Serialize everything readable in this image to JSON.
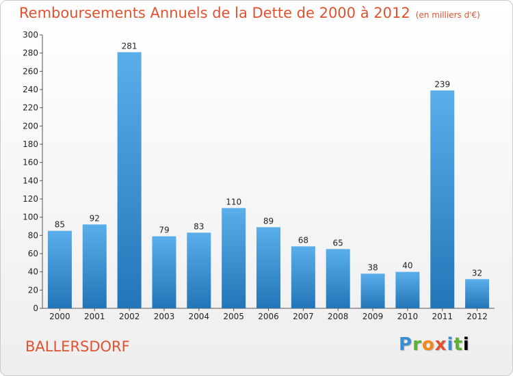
{
  "header": {
    "title": "Remboursements Annuels de la Dette de 2000 à 2012",
    "subtitle": "(en milliers d'€)"
  },
  "footer": {
    "commune": "BALLERSDORF",
    "logo_letters": [
      "P",
      "r",
      "o",
      "x",
      "i",
      "t",
      "i"
    ]
  },
  "colors": {
    "title": "#e0522e",
    "bar_light": "#5aaeea",
    "bar_dark": "#2276b8"
  },
  "chart_data": {
    "type": "bar",
    "title": "Remboursements Annuels de la Dette de 2000 à 2012",
    "subtitle": "(en milliers d'€)",
    "xlabel": "",
    "ylabel": "",
    "categories": [
      "2000",
      "2001",
      "2002",
      "2003",
      "2004",
      "2005",
      "2006",
      "2007",
      "2008",
      "2009",
      "2010",
      "2011",
      "2012"
    ],
    "values": [
      85,
      92,
      281,
      79,
      83,
      110,
      89,
      68,
      65,
      38,
      40,
      239,
      32
    ],
    "ylim": [
      0,
      300
    ],
    "yticks": [
      0,
      20,
      40,
      60,
      80,
      100,
      120,
      140,
      160,
      180,
      200,
      220,
      240,
      260,
      280,
      300
    ],
    "grid": false,
    "data_labels": true
  }
}
